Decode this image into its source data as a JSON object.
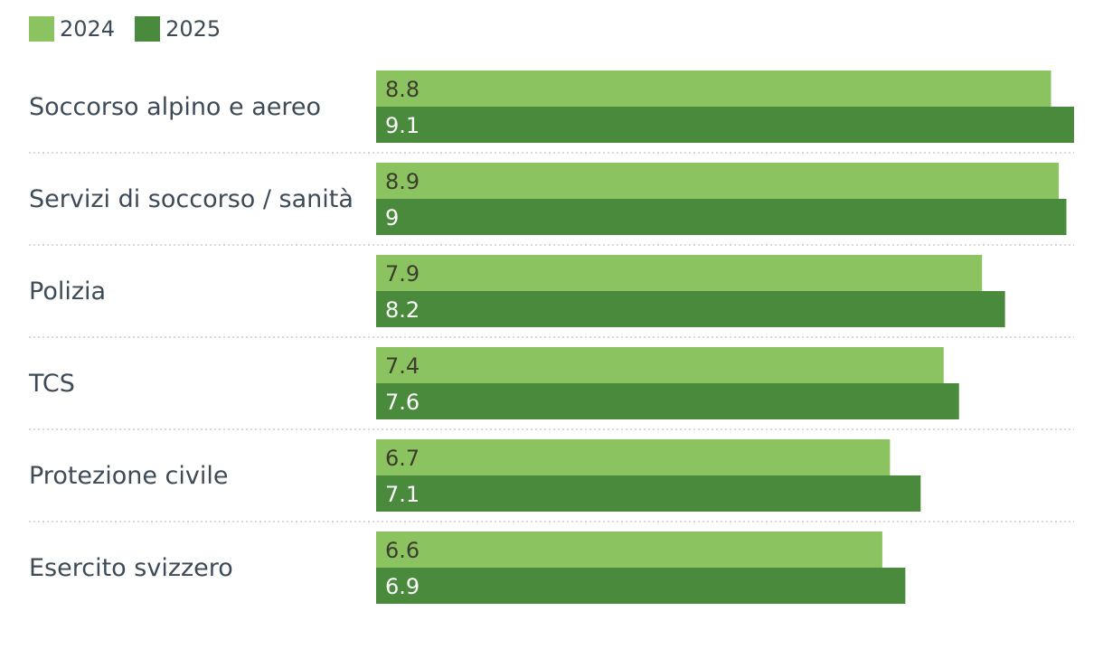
{
  "legend": {
    "items": [
      {
        "label": "2024",
        "color": "#8bc360"
      },
      {
        "label": "2025",
        "color": "#4a8a3d"
      }
    ]
  },
  "chart_data": {
    "type": "bar",
    "orientation": "horizontal",
    "categories": [
      "Soccorso alpino e aereo",
      "Servizi di soccorso / sanità",
      "Polizia",
      "TCS",
      "Protezione civile",
      "Esercito svizzero"
    ],
    "series": [
      {
        "name": "2024",
        "color": "#8bc360",
        "label_color": "#3d3d2e",
        "values": [
          8.8,
          8.9,
          7.9,
          7.4,
          6.7,
          6.6
        ]
      },
      {
        "name": "2025",
        "color": "#4a8a3d",
        "label_color": "#ffffff",
        "values": [
          9.1,
          9,
          8.2,
          7.6,
          7.1,
          6.9
        ]
      }
    ],
    "value_labels": [
      [
        "8.8",
        "8.9",
        "7.9",
        "7.4",
        "6.7",
        "6.6"
      ],
      [
        "9.1",
        "9",
        "8.2",
        "7.6",
        "7.1",
        "6.9"
      ]
    ],
    "xlim": [
      0,
      9.1
    ],
    "legend_position": "top-left",
    "gridlines": "dotted row separators"
  }
}
